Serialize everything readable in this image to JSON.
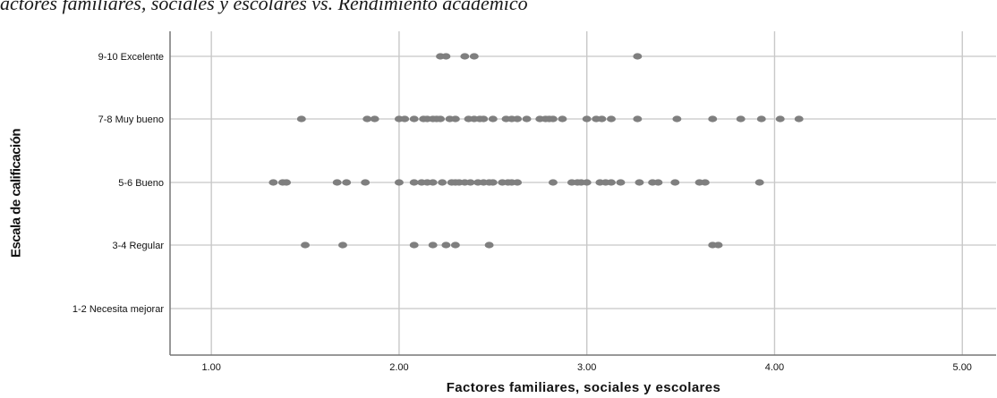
{
  "chart_data": {
    "type": "scatter",
    "title": "actores familiares, sociales y escolares vs. Rendimiento académico",
    "xlabel": "Factores familiares, sociales y escolares",
    "ylabel": "Escala de calificación",
    "xlim": [
      0.78,
      5.18
    ],
    "x_ticks": [
      1,
      2,
      3,
      4,
      5
    ],
    "x_tick_labels": [
      "1.00",
      "2.00",
      "3.00",
      "4.00",
      "5.00"
    ],
    "categories": [
      "9-10 Excelente",
      "7-8 Muy bueno",
      "5-6 Bueno",
      "3-4 Regular",
      "1-2 Necesita mejorar"
    ],
    "grid": true,
    "marker_color": "#7f7f7f",
    "points": [
      {
        "category": "9-10 Excelente",
        "x": [
          2.22,
          2.25,
          2.35,
          2.4,
          3.27
        ]
      },
      {
        "category": "7-8 Muy bueno",
        "x": [
          1.48,
          1.83,
          1.87,
          2.0,
          2.03,
          2.08,
          2.13,
          2.15,
          2.18,
          2.2,
          2.22,
          2.27,
          2.3,
          2.37,
          2.4,
          2.43,
          2.45,
          2.5,
          2.57,
          2.6,
          2.63,
          2.68,
          2.75,
          2.78,
          2.8,
          2.82,
          2.87,
          3.0,
          3.05,
          3.08,
          3.13,
          3.27,
          3.48,
          3.67,
          3.82,
          3.93,
          4.03,
          4.13
        ]
      },
      {
        "category": "5-6 Bueno",
        "x": [
          1.33,
          1.38,
          1.4,
          1.67,
          1.72,
          1.82,
          2.0,
          2.08,
          2.12,
          2.15,
          2.18,
          2.23,
          2.28,
          2.3,
          2.32,
          2.35,
          2.38,
          2.42,
          2.45,
          2.48,
          2.5,
          2.55,
          2.58,
          2.6,
          2.63,
          2.82,
          2.92,
          2.95,
          2.97,
          3.0,
          3.07,
          3.1,
          3.13,
          3.18,
          3.28,
          3.35,
          3.38,
          3.47,
          3.6,
          3.63,
          3.92
        ]
      },
      {
        "category": "3-4 Regular",
        "x": [
          1.5,
          1.7,
          2.08,
          2.18,
          2.25,
          2.3,
          2.48,
          3.67,
          3.7
        ]
      },
      {
        "category": "1-2 Necesita mejorar",
        "x": []
      }
    ]
  }
}
